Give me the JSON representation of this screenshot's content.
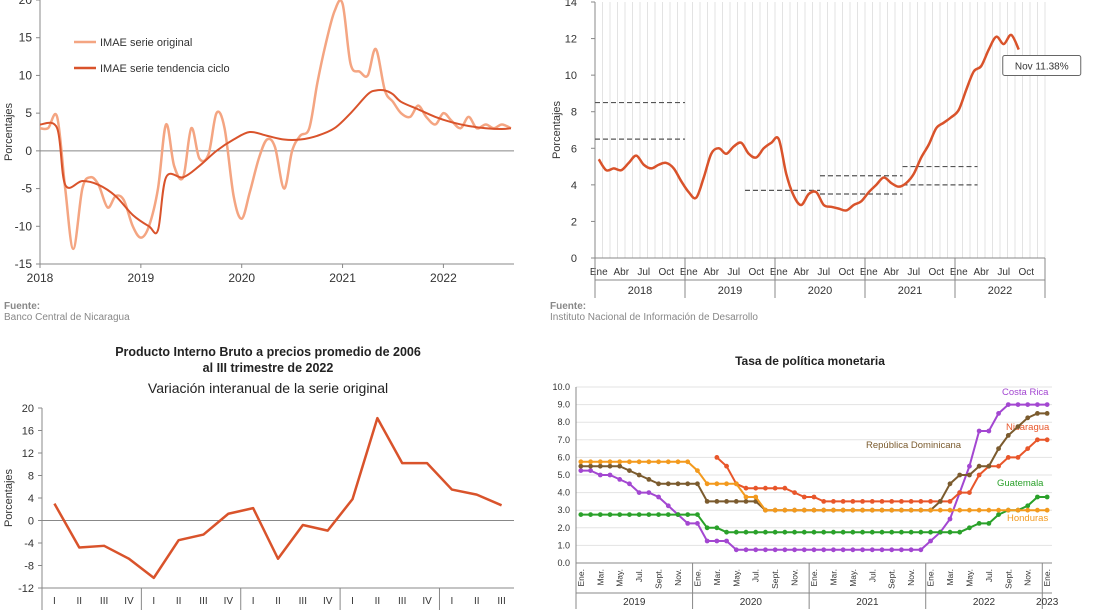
{
  "chart_data": [
    {
      "type": "line",
      "ylabel": "Porcentajes",
      "ylim": [
        -15,
        20
      ],
      "yticks": [
        -15,
        -10,
        -5,
        0,
        5,
        10,
        15,
        20
      ],
      "xlim": [
        2018,
        2022.7
      ],
      "xticks": [
        2018,
        2019,
        2020,
        2021,
        2022
      ],
      "legend": "top-left",
      "series": [
        {
          "name": "IMAE serie original",
          "color": "#f4a582",
          "x": [
            2018.0,
            2018.08,
            2018.17,
            2018.25,
            2018.33,
            2018.42,
            2018.5,
            2018.58,
            2018.67,
            2018.75,
            2018.83,
            2018.92,
            2019.0,
            2019.08,
            2019.17,
            2019.25,
            2019.33,
            2019.42,
            2019.5,
            2019.58,
            2019.67,
            2019.75,
            2019.83,
            2019.92,
            2020.0,
            2020.08,
            2020.17,
            2020.25,
            2020.33,
            2020.42,
            2020.5,
            2020.58,
            2020.67,
            2020.75,
            2020.83,
            2020.92,
            2021.0,
            2021.08,
            2021.17,
            2021.25,
            2021.33,
            2021.42,
            2021.5,
            2021.58,
            2021.67,
            2021.75,
            2021.83,
            2021.92,
            2022.0,
            2022.08,
            2022.17,
            2022.25,
            2022.33,
            2022.42,
            2022.5,
            2022.58,
            2022.67
          ],
          "y": [
            3,
            3,
            4.5,
            -5,
            -13,
            -5,
            -3.5,
            -4.5,
            -7.5,
            -6,
            -6.5,
            -10,
            -11.5,
            -10,
            -5,
            3.5,
            -2,
            -3.5,
            3,
            -1,
            -0.5,
            5,
            3,
            -6,
            -9,
            -5.5,
            -1,
            1.5,
            0.5,
            -5,
            0,
            2,
            3,
            9,
            14,
            18.5,
            19.5,
            11.5,
            10.5,
            10,
            13.5,
            8,
            6.5,
            5,
            4.5,
            6,
            4.5,
            3.5,
            5,
            4,
            3,
            4.5,
            3,
            3.5,
            3,
            3.5,
            3
          ]
        },
        {
          "name": "IMAE serie  tendencia ciclo",
          "color": "#d9532b",
          "x": [
            2018.0,
            2018.17,
            2018.25,
            2018.42,
            2018.58,
            2018.75,
            2018.92,
            2019.08,
            2019.17,
            2019.25,
            2019.42,
            2019.58,
            2019.75,
            2019.92,
            2020.08,
            2020.25,
            2020.42,
            2020.58,
            2020.75,
            2020.92,
            2021.08,
            2021.25,
            2021.33,
            2021.42,
            2021.5,
            2021.58,
            2021.75,
            2021.92,
            2022.08,
            2022.25,
            2022.42,
            2022.58,
            2022.67
          ],
          "y": [
            3.5,
            3,
            -4.5,
            -4,
            -4.5,
            -6,
            -8.5,
            -10,
            -10.5,
            -3.5,
            -3.5,
            -2,
            0,
            1.5,
            2.5,
            2,
            1.5,
            1.5,
            2,
            3,
            5,
            7.5,
            8,
            8,
            7.5,
            6.5,
            5.5,
            4.5,
            3.8,
            3.3,
            3,
            2.9,
            3
          ]
        }
      ]
    },
    {
      "type": "line",
      "ylabel": "Porcentajes",
      "ylim": [
        0,
        14
      ],
      "yticks": [
        0,
        2,
        4,
        6,
        8,
        10,
        12,
        14
      ],
      "months": [
        "Ene",
        "Abr",
        "Jul",
        "Oct"
      ],
      "years": [
        "2018",
        "2019",
        "2020",
        "2021",
        "2022"
      ],
      "annotation": "Nov 11.38%",
      "series": [
        {
          "name": "",
          "color": "#d9532b",
          "values": [
            5.4,
            4.8,
            4.9,
            4.8,
            5.2,
            5.6,
            5.1,
            4.9,
            5.1,
            5.2,
            4.9,
            4.2,
            3.6,
            3.3,
            4.4,
            5.7,
            6.0,
            5.7,
            6.1,
            6.3,
            5.7,
            5.5,
            6.0,
            6.3,
            6.5,
            4.6,
            3.4,
            2.9,
            3.5,
            3.6,
            2.9,
            2.8,
            2.7,
            2.6,
            2.9,
            3.1,
            3.6,
            4.0,
            4.4,
            4.1,
            3.9,
            4.1,
            4.6,
            5.5,
            6.2,
            7.1,
            7.4,
            7.7,
            8.1,
            9.2,
            10.2,
            10.5,
            11.4,
            12.1,
            11.7,
            12.2,
            11.4
          ]
        }
      ],
      "reference_bands": [
        {
          "from": 0,
          "to": 11,
          "values": [
            8.5,
            6.5
          ]
        },
        {
          "from": 20,
          "to": 29,
          "values": [
            3.7
          ]
        },
        {
          "from": 30,
          "to": 40,
          "values": [
            4.5,
            3.5
          ]
        },
        {
          "from": 41,
          "to": 50,
          "values": [
            5.0,
            4.0
          ]
        }
      ]
    },
    {
      "type": "line",
      "title": "Producto Interno Bruto a precios promedio de 2006",
      "title2": "al III trimestre de 2022",
      "subtitle": "Variación interanual de la serie original",
      "ylabel": "Porcentajes",
      "ylim": [
        -12,
        20
      ],
      "yticks": [
        -12,
        -8,
        -4,
        0,
        4,
        8,
        12,
        16,
        20
      ],
      "categories": [
        "I",
        "II",
        "III",
        "IV",
        "I",
        "II",
        "III",
        "IV",
        "I",
        "II",
        "III",
        "IV",
        "I",
        "II",
        "III",
        "IV",
        "I",
        "II",
        "III"
      ],
      "series": [
        {
          "name": "",
          "color": "#d9532b",
          "values": [
            3,
            -4.8,
            -4.5,
            -6.8,
            -10.2,
            -3.5,
            -2.5,
            1.2,
            2.2,
            -6.8,
            -0.8,
            -1.8,
            3.8,
            18.2,
            10.2,
            10.2,
            5.5,
            4.6,
            2.7
          ]
        }
      ]
    },
    {
      "type": "line",
      "title": "Tasa de política monetaria",
      "ylim": [
        0,
        10
      ],
      "yticks": [
        "0.0",
        "1.0",
        "2.0",
        "3.0",
        "4.0",
        "5.0",
        "6.0",
        "7.0",
        "8.0",
        "9.0",
        "10.0"
      ],
      "months": [
        "Ene.",
        "Mar.",
        "May.",
        "Jul.",
        "Sept.",
        "Nov."
      ],
      "years": [
        "2019",
        "2020",
        "2021",
        "2022",
        "2023"
      ],
      "series": [
        {
          "name": "Costa Rica",
          "color": "#a347d1",
          "values": [
            5.25,
            5.25,
            5.0,
            5.0,
            4.75,
            4.5,
            4.0,
            4.0,
            3.75,
            3.25,
            2.75,
            2.25,
            2.25,
            1.25,
            1.25,
            1.25,
            0.75,
            0.75,
            0.75,
            0.75,
            0.75,
            0.75,
            0.75,
            0.75,
            0.75,
            0.75,
            0.75,
            0.75,
            0.75,
            0.75,
            0.75,
            0.75,
            0.75,
            0.75,
            0.75,
            0.75,
            1.25,
            1.75,
            2.5,
            4.0,
            5.5,
            7.5,
            7.5,
            8.5,
            9.0,
            9.0,
            9.0,
            9.0,
            9.0
          ]
        },
        {
          "name": "Nicaragua",
          "color": "#e8562a",
          "values": [
            null,
            null,
            null,
            null,
            null,
            null,
            null,
            null,
            null,
            null,
            null,
            null,
            null,
            null,
            6.0,
            5.5,
            4.5,
            4.25,
            4.25,
            4.25,
            4.25,
            4.25,
            4.0,
            3.75,
            3.75,
            3.5,
            3.5,
            3.5,
            3.5,
            3.5,
            3.5,
            3.5,
            3.5,
            3.5,
            3.5,
            3.5,
            3.5,
            3.5,
            3.5,
            4.0,
            4.0,
            5.0,
            5.5,
            5.5,
            6.0,
            6.0,
            6.5,
            7.0,
            7.0
          ]
        },
        {
          "name": "República Dominicana",
          "color": "#7b5b2e",
          "values": [
            5.5,
            5.5,
            5.5,
            5.5,
            5.5,
            5.25,
            5.0,
            4.75,
            4.5,
            4.5,
            4.5,
            4.5,
            4.5,
            3.5,
            3.5,
            3.5,
            3.5,
            3.5,
            3.5,
            3.0,
            3.0,
            3.0,
            3.0,
            3.0,
            3.0,
            3.0,
            3.0,
            3.0,
            3.0,
            3.0,
            3.0,
            3.0,
            3.0,
            3.0,
            3.0,
            3.0,
            3.0,
            3.5,
            4.5,
            5.0,
            5.0,
            5.5,
            5.5,
            6.5,
            7.25,
            7.75,
            8.25,
            8.5,
            8.5
          ]
        },
        {
          "name": "Guatemala",
          "color": "#2aa12a",
          "values": [
            2.75,
            2.75,
            2.75,
            2.75,
            2.75,
            2.75,
            2.75,
            2.75,
            2.75,
            2.75,
            2.75,
            2.75,
            2.75,
            2.0,
            2.0,
            1.75,
            1.75,
            1.75,
            1.75,
            1.75,
            1.75,
            1.75,
            1.75,
            1.75,
            1.75,
            1.75,
            1.75,
            1.75,
            1.75,
            1.75,
            1.75,
            1.75,
            1.75,
            1.75,
            1.75,
            1.75,
            1.75,
            1.75,
            1.75,
            1.75,
            2.0,
            2.25,
            2.25,
            2.75,
            3.0,
            3.0,
            3.25,
            3.75,
            3.75
          ]
        },
        {
          "name": "Honduras",
          "color": "#f39a1e",
          "values": [
            5.75,
            5.75,
            5.75,
            5.75,
            5.75,
            5.75,
            5.75,
            5.75,
            5.75,
            5.75,
            5.75,
            5.75,
            5.25,
            4.5,
            4.5,
            4.5,
            4.5,
            3.75,
            3.75,
            3.0,
            3.0,
            3.0,
            3.0,
            3.0,
            3.0,
            3.0,
            3.0,
            3.0,
            3.0,
            3.0,
            3.0,
            3.0,
            3.0,
            3.0,
            3.0,
            3.0,
            3.0,
            3.0,
            3.0,
            3.0,
            3.0,
            3.0,
            3.0,
            3.0,
            3.0,
            3.0,
            3.0,
            3.0,
            3.0
          ]
        }
      ]
    }
  ],
  "sources": {
    "left": {
      "label": "Fuente:",
      "text": "Banco Central de Nicaragua"
    },
    "right": {
      "label": "Fuente:",
      "text": "Instituto Nacional de Información de  Desarrollo"
    }
  }
}
